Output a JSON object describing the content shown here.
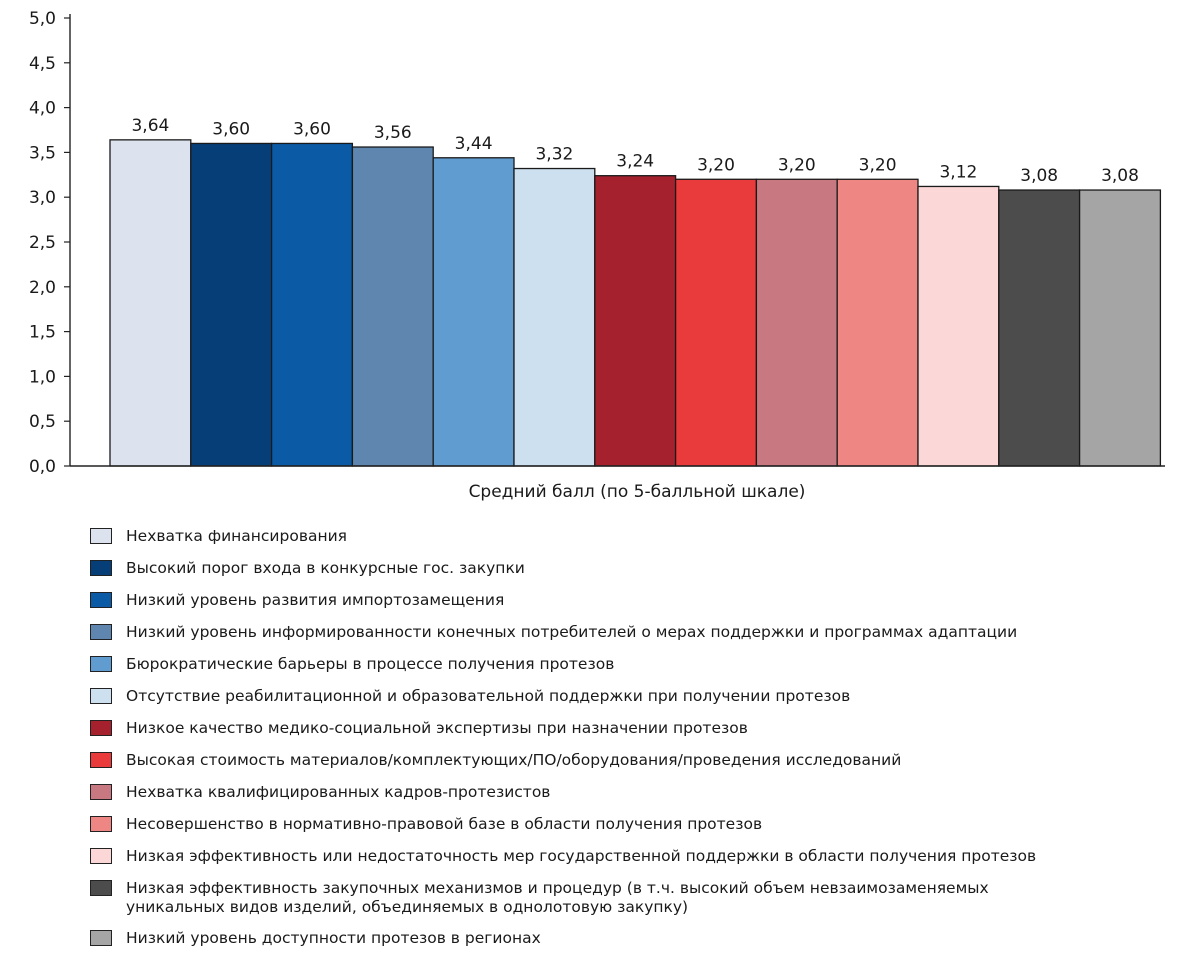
{
  "chart_data": {
    "type": "bar",
    "xlabel": "Средний балл (по 5-балльной шкале)",
    "ylabel": "",
    "ylim": [
      0,
      5.0
    ],
    "ytick_step": 0.5,
    "yticks": [
      "0,0",
      "0,5",
      "1,0",
      "1,5",
      "2,0",
      "2,5",
      "3,0",
      "3,5",
      "4,0",
      "4,5",
      "5,0"
    ],
    "grid": false,
    "legend_position": "bottom",
    "series": [
      {
        "name": "Нехватка финансирования",
        "value": 3.64,
        "label": "3,64",
        "color": "#dce3ee"
      },
      {
        "name": "Высокий порог входа в конкурсные гос. закупки",
        "value": 3.6,
        "label": "3,60",
        "color": "#063f78"
      },
      {
        "name": "Низкий уровень развития импортозамещения",
        "value": 3.6,
        "label": "3,60",
        "color": "#0b5aa6"
      },
      {
        "name": "Низкий уровень информированности конечных потребителей о мерах поддержки и программах адаптации",
        "value": 3.56,
        "label": "3,56",
        "color": "#5e86ae"
      },
      {
        "name": "Бюрократические барьеры в процессе получения протезов",
        "value": 3.44,
        "label": "3,44",
        "color": "#609cd0"
      },
      {
        "name": "Отсутствие реабилитационной и образовательной поддержки при получении протезов",
        "value": 3.32,
        "label": "3,32",
        "color": "#cde0ef"
      },
      {
        "name": "Низкое качество медико-социальной экспертизы при назначении протезов",
        "value": 3.24,
        "label": "3,24",
        "color": "#a6212e"
      },
      {
        "name": "Высокая стоимость материалов/комплектующих/ПО/оборудования/проведения исследований",
        "value": 3.2,
        "label": "3,20",
        "color": "#e93b3b"
      },
      {
        "name": "Нехватка квалифицированных кадров-протезистов",
        "value": 3.2,
        "label": "3,20",
        "color": "#c77880"
      },
      {
        "name": "Несовершенство в нормативно-правовой базе в области получения протезов",
        "value": 3.2,
        "label": "3,20",
        "color": "#ee8784"
      },
      {
        "name": "Низкая эффективность или недостаточность мер государственной поддержки в области получения протезов",
        "value": 3.12,
        "label": "3,12",
        "color": "#fbd7d8"
      },
      {
        "name": "Низкая эффективность закупочных механизмов и процедур (в т.ч. высокий объем невзаимозаменяемых\nуникальных видов изделий, объединяемых в однолотовую закупку)",
        "value": 3.08,
        "label": "3,08",
        "color": "#4c4c4c"
      },
      {
        "name": "Низкий уровень доступности протезов в регионах",
        "value": 3.08,
        "label": "3,08",
        "color": "#a5a5a5"
      }
    ]
  }
}
